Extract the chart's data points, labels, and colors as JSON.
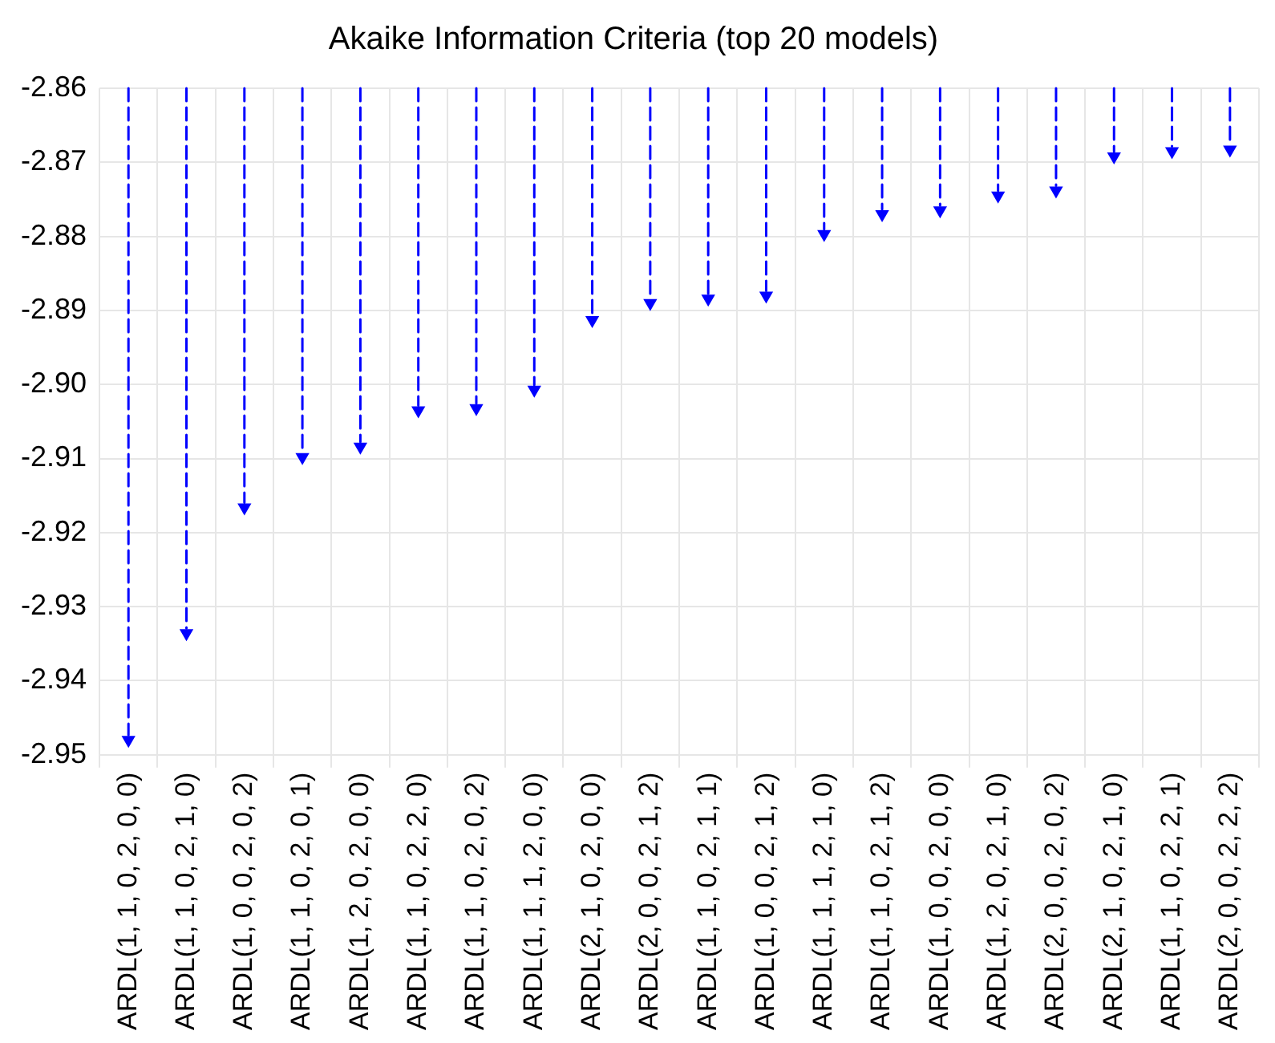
{
  "chart_data": {
    "type": "lollipop",
    "title": "Akaike Information Criteria (top 20 models)",
    "categories": [
      "ARDL(1, 1, 0, 2, 0, 0)",
      "ARDL(1, 1, 0, 2, 1, 0)",
      "ARDL(1, 0, 0, 2, 0, 2)",
      "ARDL(1, 1, 0, 2, 0, 1)",
      "ARDL(1, 2, 0, 2, 0, 0)",
      "ARDL(1, 1, 0, 2, 2, 0)",
      "ARDL(1, 1, 0, 2, 0, 2)",
      "ARDL(1, 1, 1, 2, 0, 0)",
      "ARDL(2, 1, 0, 2, 0, 0)",
      "ARDL(2, 0, 0, 2, 1, 2)",
      "ARDL(1, 1, 0, 2, 1, 1)",
      "ARDL(1, 0, 0, 2, 1, 2)",
      "ARDL(1, 1, 1, 2, 1, 0)",
      "ARDL(1, 1, 0, 2, 1, 2)",
      "ARDL(1, 0, 0, 2, 0, 0)",
      "ARDL(1, 2, 0, 2, 1, 0)",
      "ARDL(2, 0, 0, 2, 0, 2)",
      "ARDL(2, 1, 0, 2, 1, 0)",
      "ARDL(1, 1, 0, 2, 2, 1)",
      "ARDL(2, 0, 0, 2, 2, 2)"
    ],
    "values": [
      -2.948,
      -2.9336,
      -2.9166,
      -2.9098,
      -2.9084,
      -2.9035,
      -2.9032,
      -2.9007,
      -2.8913,
      -2.889,
      -2.8884,
      -2.888,
      -2.8797,
      -2.877,
      -2.8765,
      -2.8745,
      -2.8738,
      -2.8692,
      -2.8685,
      -2.8683
    ],
    "color": "#0000ff",
    "ylim": [
      -2.95,
      -2.86
    ],
    "yticks": [
      -2.95,
      -2.94,
      -2.93,
      -2.92,
      -2.91,
      {
        "value": -2.9,
        "label": "-2.90"
      },
      -2.89,
      -2.88,
      -2.87,
      -2.86
    ],
    "grid": true,
    "marker": "triangle",
    "line_style": "dashed"
  }
}
